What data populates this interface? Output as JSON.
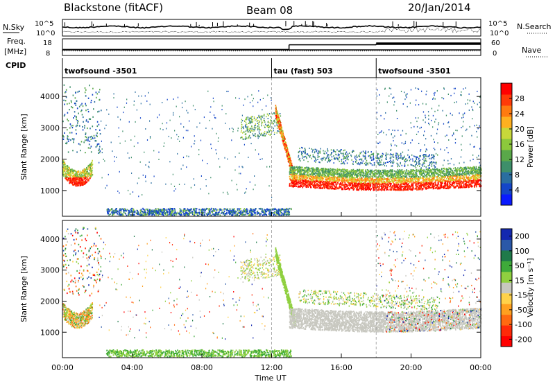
{
  "header": {
    "title": "Blackstone (fitACF)",
    "beam": "Beam 08",
    "date": "20/Jan/2014"
  },
  "sidebar": {
    "nsky": "N.Sky",
    "freq_line1": "Freq.",
    "freq_line2": "[MHz]",
    "cpid": "CPID",
    "nsearch": "N.Search",
    "nave": "Nave"
  },
  "chart_data": {
    "type": "heatmap",
    "xlabel": "Time UT",
    "x_ticks": [
      "00:00",
      "04:00",
      "08:00",
      "12:00",
      "16:00",
      "20:00",
      "00:00"
    ],
    "xlim_hours": [
      0,
      24
    ],
    "noise_panel": {
      "left_ticks": [
        "10^5",
        "10^0"
      ],
      "right_ticks": [
        "10^5",
        "10^0"
      ]
    },
    "freq_panel": {
      "left_ticks": [
        "18",
        "8"
      ],
      "right_ticks": [
        "60",
        "0"
      ],
      "freq_mhz": [
        {
          "from": 0,
          "to": 24,
          "value": 11
        }
      ],
      "nave": [
        {
          "from": 0,
          "to": 13,
          "value": 20
        },
        {
          "from": 13,
          "to": 18,
          "value": 40
        },
        {
          "from": 18,
          "to": 24,
          "value": 45
        }
      ]
    },
    "cpid_segments": [
      {
        "label": "twofsound -3501",
        "start": 0
      },
      {
        "label": "tau (fast) 503",
        "start": 12.0
      },
      {
        "label": "twofsound -3501",
        "start": 18.0
      }
    ],
    "y_ticks": [
      "1000",
      "2000",
      "3000",
      "4000"
    ],
    "ylabel": "Slant Range [km]",
    "ylim_km": [
      180,
      4600
    ],
    "power": {
      "colorbar_label": "Power [dB]",
      "colorbar_ticks": [
        "4",
        "8",
        "12",
        "16",
        "20",
        "24",
        "28"
      ],
      "colors": [
        "#0a1aff",
        "#1446c8",
        "#2a6ea0",
        "#3e8f6a",
        "#5aa84a",
        "#8cc83c",
        "#c8d83a",
        "#ffb020",
        "#ff7a10",
        "#ff3a08",
        "#ff0000"
      ]
    },
    "velocity": {
      "colorbar_label": "Velocity [m s⁻¹]",
      "colorbar_ticks": [
        "200",
        "100",
        "50",
        "15",
        "-15",
        "-50",
        "-100",
        "-200"
      ],
      "colors": [
        "#1428b0",
        "#2a58a8",
        "#1f7a4a",
        "#3eaa3a",
        "#90d040",
        "#c8c8c0",
        "#ffd24a",
        "#ffa020",
        "#ff6a10",
        "#ff2a08",
        "#ff0000"
      ]
    }
  }
}
